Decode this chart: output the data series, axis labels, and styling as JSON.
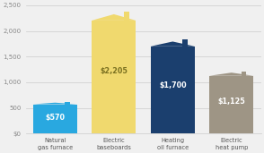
{
  "categories": [
    "Natural\ngas furnace",
    "Electric\nbaseboards",
    "Heating\noil furnace",
    "Electric\nheat pump"
  ],
  "values": [
    570,
    2205,
    1700,
    1125
  ],
  "labels": [
    "$570",
    "$2,205",
    "$1,700",
    "$1,125"
  ],
  "bar_colors": [
    "#29a8e0",
    "#f0d96e",
    "#1b3f6e",
    "#9e9585"
  ],
  "label_colors": [
    "#ffffff",
    "#7a7020",
    "#ffffff",
    "#ffffff"
  ],
  "ylim": [
    0,
    2500
  ],
  "yticks": [
    0,
    500,
    1000,
    1500,
    2000,
    2500
  ],
  "ytick_labels": [
    "$0",
    "500",
    "1,000",
    "1,500",
    "2,000",
    "2,500"
  ],
  "background_color": "#f0f0f0"
}
